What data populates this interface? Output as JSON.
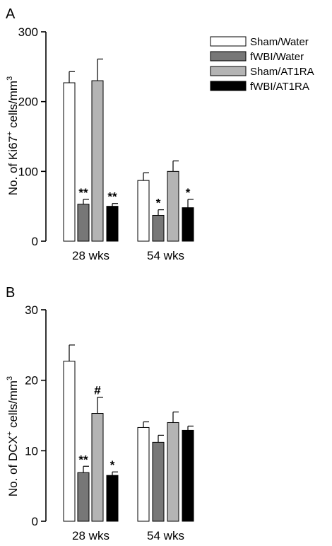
{
  "legend": [
    {
      "name": "Sham/Water",
      "color": "#ffffff"
    },
    {
      "name": "fWBI/Water",
      "color": "#777777"
    },
    {
      "name": "Sham/AT1RA",
      "color": "#b4b4b4"
    },
    {
      "name": "fWBI/AT1RA",
      "color": "#000000"
    }
  ],
  "chart_data": [
    {
      "type": "bar",
      "panel_label": "A",
      "ylabel_prefix": "No.  of Ki67",
      "ylabel_sup": "+",
      "ylabel_mid": " cells/mm",
      "ylabel_sup2": "3",
      "ylim": [
        0,
        300
      ],
      "yticks": [
        "0",
        "100",
        "200",
        "300"
      ],
      "categories": [
        "28 wks",
        "54 wks"
      ],
      "series": [
        {
          "name": "Sham/Water",
          "values": [
            227,
            87
          ],
          "errors": [
            16,
            11
          ],
          "marks": [
            "",
            ""
          ]
        },
        {
          "name": "fWBI/Water",
          "values": [
            53,
            37
          ],
          "errors": [
            7,
            8
          ],
          "marks": [
            "**",
            "*"
          ]
        },
        {
          "name": "Sham/AT1RA",
          "values": [
            230,
            100
          ],
          "errors": [
            31,
            15
          ],
          "marks": [
            "",
            ""
          ]
        },
        {
          "name": "fWBI/AT1RA",
          "values": [
            50,
            48
          ],
          "errors": [
            4,
            12
          ],
          "marks": [
            "**",
            "*"
          ]
        }
      ]
    },
    {
      "type": "bar",
      "panel_label": "B",
      "ylabel_prefix": "No. of  DCX",
      "ylabel_sup": "+",
      "ylabel_mid": " cells/mm",
      "ylabel_sup2": "3",
      "ylim": [
        0,
        30
      ],
      "yticks": [
        "0",
        "10",
        "20",
        "30"
      ],
      "categories": [
        "28 wks",
        "54 wks"
      ],
      "series": [
        {
          "name": "Sham/Water",
          "values": [
            22.7,
            13.3
          ],
          "errors": [
            2.3,
            0.8
          ],
          "marks": [
            "",
            ""
          ]
        },
        {
          "name": "fWBI/Water",
          "values": [
            6.9,
            11.2
          ],
          "errors": [
            0.9,
            1.0
          ],
          "marks": [
            "**",
            ""
          ]
        },
        {
          "name": "Sham/AT1RA",
          "values": [
            15.3,
            14.0
          ],
          "errors": [
            2.3,
            1.5
          ],
          "marks": [
            "#",
            ""
          ]
        },
        {
          "name": "fWBI/AT1RA",
          "values": [
            6.5,
            12.9
          ],
          "errors": [
            0.5,
            0.6
          ],
          "marks": [
            "*",
            ""
          ]
        }
      ]
    }
  ]
}
